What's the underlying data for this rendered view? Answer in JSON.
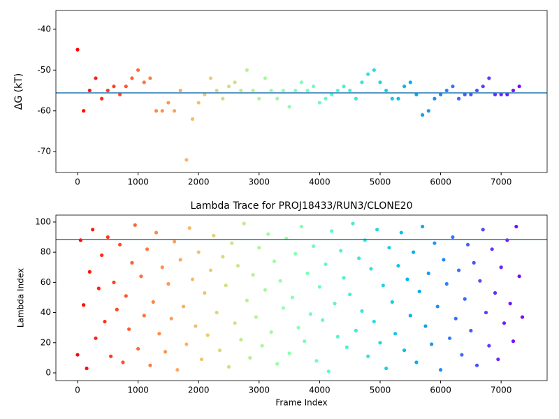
{
  "chart_data": [
    {
      "type": "scatter",
      "ylabel": "ΔG (kT)",
      "colormap": "rainbow_r",
      "x": [
        0,
        100,
        200,
        300,
        400,
        500,
        600,
        700,
        800,
        900,
        1000,
        1100,
        1200,
        1300,
        1400,
        1500,
        1600,
        1700,
        1800,
        1900,
        2000,
        2100,
        2200,
        2300,
        2400,
        2500,
        2600,
        2700,
        2800,
        2900,
        3000,
        3100,
        3200,
        3300,
        3400,
        3500,
        3600,
        3700,
        3800,
        3900,
        4000,
        4100,
        4200,
        4300,
        4400,
        4500,
        4600,
        4700,
        4800,
        4900,
        5000,
        5100,
        5200,
        5300,
        5400,
        5500,
        5600,
        5700,
        5800,
        5900,
        6000,
        6100,
        6200,
        6300,
        6400,
        6500,
        6600,
        6700,
        6800,
        6900,
        7000,
        7100,
        7200,
        7300
      ],
      "values": [
        -45,
        -60,
        -55,
        -52,
        -57,
        -55,
        -54,
        -56,
        -54,
        -52,
        -50,
        -53,
        -52,
        -60,
        -60,
        -58,
        -60,
        -55,
        -72,
        -62,
        -58,
        -56,
        -52,
        -55,
        -57,
        -54,
        -53,
        -55,
        -50,
        -55,
        -57,
        -52,
        -55,
        -57,
        -55,
        -59,
        -55,
        -53,
        -55,
        -54,
        -58,
        -57,
        -56,
        -55,
        -54,
        -55,
        -57,
        -53,
        -51,
        -50,
        -53,
        -55,
        -57,
        -57,
        -54,
        -53,
        -56,
        -61,
        -60,
        -57,
        -56,
        -55,
        -54,
        -57,
        -56,
        -56,
        -55,
        -54,
        -52,
        -56,
        -56,
        -56,
        -55,
        -54
      ],
      "hline": -55.6,
      "hline_color": "#1f77b4",
      "xlim": [
        -358,
        7760
      ],
      "xticks": [
        0,
        1000,
        2000,
        3000,
        4000,
        5000,
        6000,
        7000
      ],
      "ylim": [
        -75.1,
        -35.4
      ],
      "yticks": [
        -70,
        -60,
        -50,
        -40
      ]
    },
    {
      "type": "scatter",
      "title": "Lambda Trace for PROJ18433/RUN3/CLONE20",
      "xlabel": "Frame Index",
      "ylabel": "Lambda Index",
      "colormap": "rainbow_r",
      "x": [
        0,
        50,
        100,
        150,
        200,
        250,
        300,
        350,
        400,
        450,
        500,
        550,
        600,
        650,
        700,
        750,
        800,
        850,
        900,
        950,
        1000,
        1050,
        1100,
        1150,
        1200,
        1250,
        1300,
        1350,
        1400,
        1450,
        1500,
        1550,
        1600,
        1650,
        1700,
        1750,
        1800,
        1850,
        1900,
        1950,
        2000,
        2050,
        2100,
        2150,
        2200,
        2250,
        2300,
        2350,
        2400,
        2450,
        2500,
        2550,
        2600,
        2650,
        2700,
        2750,
        2800,
        2850,
        2900,
        2950,
        3000,
        3050,
        3100,
        3150,
        3200,
        3250,
        3300,
        3350,
        3400,
        3450,
        3500,
        3550,
        3600,
        3650,
        3700,
        3750,
        3800,
        3850,
        3900,
        3950,
        4000,
        4050,
        4100,
        4150,
        4200,
        4250,
        4300,
        4350,
        4400,
        4450,
        4500,
        4550,
        4600,
        4650,
        4700,
        4750,
        4800,
        4850,
        4900,
        4950,
        5000,
        5050,
        5100,
        5150,
        5200,
        5250,
        5300,
        5350,
        5400,
        5450,
        5500,
        5550,
        5600,
        5650,
        5700,
        5750,
        5800,
        5850,
        5900,
        5950,
        6000,
        6050,
        6100,
        6150,
        6200,
        6250,
        6300,
        6350,
        6400,
        6450,
        6500,
        6550,
        6600,
        6650,
        6700,
        6750,
        6800,
        6850,
        6900,
        6950,
        7000,
        7050,
        7100,
        7150,
        7200,
        7250,
        7300,
        7350
      ],
      "values": [
        12,
        88,
        45,
        3,
        67,
        95,
        23,
        56,
        78,
        34,
        90,
        11,
        60,
        42,
        85,
        7,
        51,
        29,
        73,
        98,
        16,
        64,
        38,
        82,
        5,
        47,
        93,
        26,
        70,
        14,
        59,
        36,
        87,
        2,
        75,
        44,
        19,
        96,
        62,
        31,
        80,
        9,
        53,
        25,
        68,
        91,
        40,
        15,
        77,
        58,
        4,
        86,
        33,
        71,
        22,
        99,
        48,
        10,
        65,
        37,
        83,
        18,
        55,
        92,
        27,
        74,
        6,
        61,
        43,
        89,
        13,
        50,
        79,
        30,
        97,
        21,
        66,
        39,
        84,
        8,
        57,
        35,
        72,
        1,
        94,
        46,
        24,
        81,
        63,
        17,
        52,
        99,
        28,
        76,
        41,
        88,
        11,
        69,
        34,
        95,
        20,
        58,
        3,
        83,
        47,
        26,
        71,
        93,
        15,
        62,
        38,
        80,
        7,
        54,
        97,
        31,
        66,
        19,
        86,
        44,
        2,
        75,
        59,
        23,
        90,
        36,
        68,
        12,
        49,
        85,
        28,
        73,
        5,
        61,
        95,
        40,
        18,
        82,
        53,
        9,
        70,
        33,
        88,
        46,
        21,
        97,
        64,
        37
      ],
      "hline": 88.4,
      "hline_color": "#1f77b4",
      "xlim": [
        -358,
        7760
      ],
      "xticks": [
        0,
        1000,
        2000,
        3000,
        4000,
        5000,
        6000,
        7000
      ],
      "ylim": [
        -5.1,
        104.6
      ],
      "yticks": [
        0,
        20,
        40,
        60,
        80,
        100
      ]
    }
  ]
}
